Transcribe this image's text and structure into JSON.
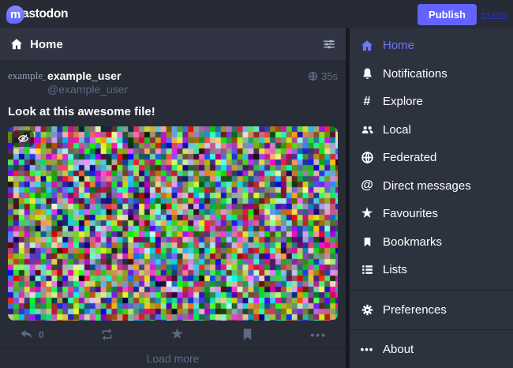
{
  "colors": {
    "accent": "#6364ff",
    "accent_active": "#6d78f2",
    "page_bg": "#191b22",
    "top_bar_bg": "#262b35",
    "column_header_bg": "#313543",
    "post_bg": "#282c37",
    "nav_bg": "#2d323f",
    "muted": "#606984",
    "link_blue": "#2b35a8"
  },
  "top_bar": {
    "logo_initial": "m",
    "logo_rest": "astodon",
    "publish_label": "Publish",
    "account_link_text": "example_user"
  },
  "timeline": {
    "column_header": "Home",
    "load_more_label": "Load more"
  },
  "post": {
    "avatar_alt": "example_user",
    "display_name": "example_user",
    "handle": "@example_user",
    "timestamp": "35s",
    "content": "Look at this awesome file!",
    "reply_count": "0"
  },
  "icons": {
    "explore_glyph": "#",
    "direct_messages_glyph": "@",
    "favourites_glyph": "★",
    "star_action_glyph": "★",
    "about_glyph": "•••",
    "more_glyph": "•••"
  },
  "nav": {
    "items": [
      {
        "label": "Home",
        "icon": "home-icon",
        "active": true
      },
      {
        "label": "Notifications",
        "icon": "bell-icon"
      },
      {
        "label": "Explore",
        "icon": "hash-icon"
      },
      {
        "label": "Local",
        "icon": "users-icon"
      },
      {
        "label": "Federated",
        "icon": "globe-icon"
      },
      {
        "label": "Direct messages",
        "icon": "at-icon"
      },
      {
        "label": "Favourites",
        "icon": "star-icon"
      },
      {
        "label": "Bookmarks",
        "icon": "bookmark-icon"
      },
      {
        "label": "Lists",
        "icon": "list-icon"
      },
      {
        "label": "Preferences",
        "icon": "gear-icon"
      },
      {
        "label": "About",
        "icon": "ellipsis-icon"
      }
    ]
  }
}
